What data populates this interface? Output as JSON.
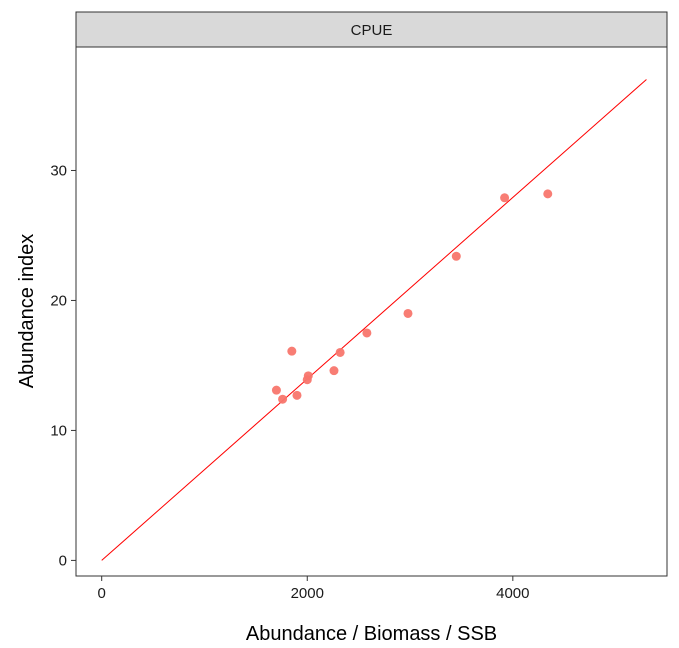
{
  "chart_data": {
    "type": "scatter",
    "facet_label": "CPUE",
    "xlabel": "Abundance / Biomass / SSB",
    "ylabel": "Abundance index",
    "xlim": [
      -250,
      5500
    ],
    "ylim": [
      -1.2,
      39.5
    ],
    "x_ticks": [
      0,
      2000,
      4000
    ],
    "y_ticks": [
      0,
      10,
      20,
      30
    ],
    "x_tick_labels": [
      "0",
      "2000",
      "4000"
    ],
    "y_tick_labels": [
      "0",
      "10",
      "20",
      "30"
    ],
    "grid": false,
    "points": [
      {
        "x": 1700,
        "y": 13.1
      },
      {
        "x": 1760,
        "y": 12.4
      },
      {
        "x": 1850,
        "y": 16.1
      },
      {
        "x": 1900,
        "y": 12.7
      },
      {
        "x": 2000,
        "y": 13.9
      },
      {
        "x": 2010,
        "y": 14.2
      },
      {
        "x": 2260,
        "y": 14.6
      },
      {
        "x": 2320,
        "y": 16.0
      },
      {
        "x": 2580,
        "y": 17.5
      },
      {
        "x": 2980,
        "y": 19.0
      },
      {
        "x": 3450,
        "y": 23.4
      },
      {
        "x": 3920,
        "y": 27.9
      },
      {
        "x": 4340,
        "y": 28.2
      }
    ],
    "fit_line": {
      "x": [
        0,
        5300
      ],
      "y": [
        0,
        37.0
      ]
    },
    "colors": {
      "points": "#f8766d",
      "line": "#ff0000",
      "strip_bg": "#d9d9d9",
      "frame": "#333333"
    }
  }
}
